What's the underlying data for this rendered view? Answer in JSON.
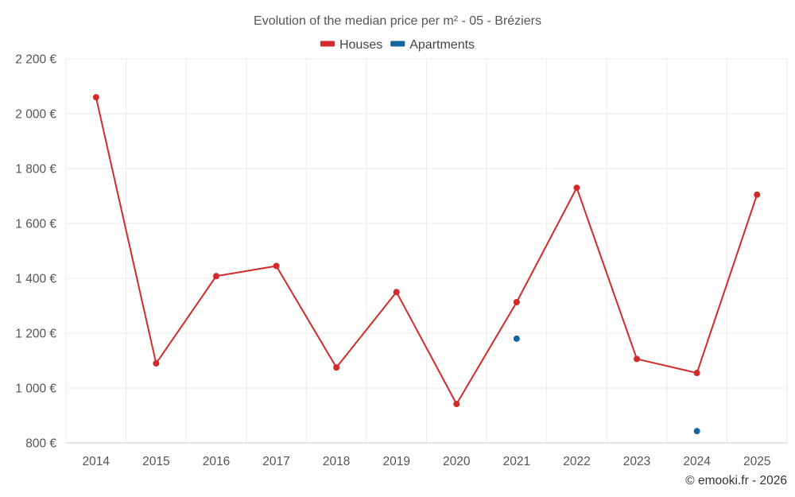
{
  "chart_data": {
    "type": "line",
    "title": "Evolution of the median price per m² - 05 - Bréziers",
    "categories": [
      "2014",
      "2015",
      "2016",
      "2017",
      "2018",
      "2019",
      "2020",
      "2021",
      "2022",
      "2023",
      "2024",
      "2025"
    ],
    "series": [
      {
        "name": "Houses",
        "color": "#d42a2a",
        "values": [
          2060,
          1090,
          1408,
          1445,
          1075,
          1350,
          942,
          1313,
          1730,
          1106,
          1055,
          1705
        ]
      },
      {
        "name": "Apartments",
        "color": "#1565a0",
        "values": [
          null,
          null,
          null,
          null,
          null,
          null,
          null,
          1180,
          null,
          null,
          843,
          null
        ]
      }
    ],
    "yticks": [
      800,
      1000,
      1200,
      1400,
      1600,
      1800,
      2000,
      2200
    ],
    "ytick_labels": [
      "800 €",
      "1 000 €",
      "1 200 €",
      "1 400 €",
      "1 600 €",
      "1 800 €",
      "2 000 €",
      "2 200 €"
    ],
    "ylim": [
      800,
      2200
    ],
    "grid": true,
    "legend_position": "top-center",
    "credit": "© emooki.fr - 2026"
  }
}
